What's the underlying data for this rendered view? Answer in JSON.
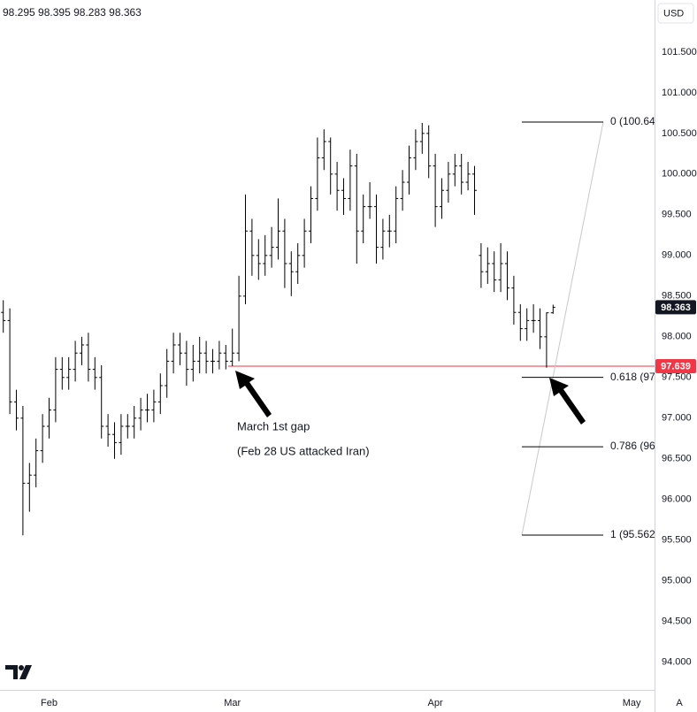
{
  "chart_data": {
    "type": "ohlc",
    "color": "#000000",
    "grid": false,
    "currency": "USD",
    "scale_mode": "A",
    "categories": [
      null,
      null,
      null,
      null,
      null,
      null,
      null,
      "Feb",
      null,
      null,
      null,
      null,
      null,
      null,
      null,
      null,
      null,
      null,
      null,
      null,
      null,
      null,
      null,
      null,
      null,
      null,
      null,
      null,
      null,
      null,
      null,
      null,
      null,
      null,
      null,
      "Mar",
      null,
      null,
      null,
      null,
      null,
      null,
      null,
      null,
      null,
      null,
      null,
      null,
      null,
      null,
      null,
      null,
      null,
      null,
      null,
      null,
      null,
      null,
      null,
      null,
      null,
      null,
      null,
      null,
      null,
      null,
      "Apr",
      null,
      null,
      null,
      null,
      null,
      null,
      null,
      null,
      null,
      null,
      null,
      null,
      null,
      null,
      null,
      null,
      null,
      null,
      null,
      null,
      null,
      null,
      null,
      null,
      null,
      null,
      null,
      null,
      null,
      "May",
      null,
      null,
      null
    ],
    "open": [
      98.3,
      98.2,
      97.2,
      97.0,
      96.2,
      96.3,
      96.6,
      96.9,
      97.1,
      97.6,
      97.5,
      97.6,
      97.8,
      97.9,
      97.6,
      97.5,
      96.9,
      96.8,
      96.7,
      96.9,
      96.9,
      97.0,
      97.1,
      97.1,
      97.2,
      97.4,
      97.7,
      97.9,
      97.8,
      97.6,
      97.7,
      97.8,
      97.7,
      97.7,
      97.8,
      97.7,
      97.8,
      98.5,
      99.3,
      99.0,
      98.9,
      99.0,
      99.1,
      99.3,
      98.9,
      98.8,
      99.0,
      99.3,
      99.7,
      100.2,
      100.4,
      100.0,
      99.8,
      99.7,
      100.1,
      99.3,
      99.6,
      99.6,
      99.1,
      99.3,
      99.3,
      99.7,
      99.9,
      100.2,
      100.4,
      100.5,
      100.1,
      99.6,
      99.8,
      100.0,
      100.1,
      99.9,
      100.0,
      99.0,
      98.8,
      98.9,
      98.7,
      98.9,
      98.6,
      98.3,
      98.1,
      98.2,
      98.2,
      98.0,
      98.295,
      null,
      null,
      null,
      null,
      null,
      null,
      null,
      null,
      null,
      null,
      null,
      null,
      null,
      null,
      null
    ],
    "high": [
      98.45,
      98.35,
      97.35,
      97.15,
      96.45,
      96.75,
      97.05,
      97.25,
      97.75,
      97.75,
      97.75,
      97.95,
      98.0,
      98.05,
      97.75,
      97.65,
      97.05,
      96.95,
      97.05,
      97.05,
      97.15,
      97.25,
      97.3,
      97.35,
      97.55,
      97.85,
      98.05,
      98.05,
      97.95,
      97.9,
      98.0,
      97.95,
      97.85,
      97.95,
      97.9,
      98.1,
      98.75,
      99.75,
      99.45,
      99.2,
      99.25,
      99.35,
      99.7,
      99.45,
      99.05,
      99.15,
      99.45,
      99.85,
      100.45,
      100.55,
      100.45,
      100.15,
      99.95,
      100.3,
      100.25,
      99.75,
      99.9,
      99.75,
      99.45,
      99.5,
      99.85,
      100.05,
      100.35,
      100.55,
      100.63,
      100.6,
      100.25,
      99.95,
      100.15,
      100.25,
      100.25,
      100.15,
      100.1,
      99.15,
      99.1,
      99.05,
      99.15,
      99.05,
      98.75,
      98.4,
      98.35,
      98.4,
      98.35,
      98.3,
      98.395,
      null,
      null,
      null,
      null,
      null,
      null,
      null,
      null,
      null,
      null,
      null,
      null,
      null,
      null,
      null
    ],
    "low": [
      98.05,
      97.05,
      96.85,
      95.56,
      95.85,
      96.15,
      96.45,
      96.75,
      96.95,
      97.35,
      97.35,
      97.45,
      97.65,
      97.45,
      97.35,
      96.75,
      96.65,
      96.5,
      96.55,
      96.75,
      96.75,
      96.85,
      96.95,
      96.95,
      97.05,
      97.25,
      97.55,
      97.65,
      97.4,
      97.45,
      97.55,
      97.55,
      97.55,
      97.6,
      97.6,
      97.64,
      97.7,
      98.4,
      98.75,
      98.7,
      98.75,
      98.85,
      98.95,
      98.6,
      98.5,
      98.65,
      98.85,
      99.15,
      99.55,
      100.05,
      99.75,
      99.55,
      99.5,
      99.55,
      98.9,
      99.15,
      99.45,
      98.9,
      98.95,
      99.1,
      99.15,
      99.55,
      99.75,
      100.05,
      100.25,
      99.95,
      99.35,
      99.45,
      99.65,
      99.85,
      99.75,
      99.8,
      99.5,
      98.6,
      98.65,
      98.55,
      98.55,
      98.45,
      98.15,
      97.95,
      97.95,
      98.05,
      97.85,
      97.62,
      98.283,
      null,
      null,
      null,
      null,
      null,
      null,
      null,
      null,
      null,
      null,
      null,
      null,
      null,
      null,
      null
    ],
    "close": [
      98.2,
      97.2,
      97.0,
      96.2,
      96.3,
      96.6,
      96.9,
      97.1,
      97.6,
      97.5,
      97.6,
      97.8,
      97.9,
      97.6,
      97.5,
      96.9,
      96.8,
      96.7,
      96.9,
      96.9,
      97.0,
      97.1,
      97.1,
      97.2,
      97.4,
      97.7,
      97.9,
      97.8,
      97.6,
      97.7,
      97.8,
      97.7,
      97.7,
      97.8,
      97.7,
      97.8,
      98.5,
      99.3,
      99.0,
      98.9,
      99.0,
      99.1,
      99.3,
      98.9,
      98.8,
      99.0,
      99.3,
      99.7,
      100.2,
      100.4,
      100.0,
      99.8,
      99.7,
      100.1,
      99.3,
      99.6,
      99.6,
      99.1,
      99.3,
      99.3,
      99.7,
      99.9,
      100.2,
      100.4,
      100.5,
      100.1,
      99.6,
      99.8,
      100.0,
      100.1,
      99.9,
      100.0,
      99.8,
      98.8,
      98.9,
      98.7,
      98.9,
      98.6,
      98.3,
      98.1,
      98.2,
      98.2,
      98.0,
      98.295,
      98.363,
      null,
      null,
      null,
      null,
      null,
      null,
      null,
      null,
      null,
      null,
      null,
      null,
      null,
      null,
      null
    ],
    "ylim": [
      93.66,
      102.14
    ],
    "yticks": [
      {
        "value": 94,
        "label": "94.000"
      },
      {
        "value": 94.5,
        "label": "94.500"
      },
      {
        "value": 95,
        "label": "95.000"
      },
      {
        "value": 95.5,
        "label": "95.500"
      },
      {
        "value": 96,
        "label": "96.000"
      },
      {
        "value": 96.5,
        "label": "96.500"
      },
      {
        "value": 97,
        "label": "97.000"
      },
      {
        "value": 97.5,
        "label": "97.500"
      },
      {
        "value": 98,
        "label": "98.000"
      },
      {
        "value": 98.5,
        "label": "98.500"
      },
      {
        "value": 99,
        "label": "99.000"
      },
      {
        "value": 99.5,
        "label": "99.500"
      },
      {
        "value": 100,
        "label": "100.000"
      },
      {
        "value": 100.5,
        "label": "100.500"
      },
      {
        "value": 101,
        "label": "101.000"
      },
      {
        "value": 101.5,
        "label": "101.500"
      }
    ],
    "horizontal_line": {
      "value": 97.639,
      "color": "#f23645"
    },
    "fibonacci": {
      "color": "#000000",
      "trend_color": "#c8c8c8",
      "levels": [
        {
          "label": "0 (100.64",
          "price": 100.64
        },
        {
          "label": "0.618 (97",
          "price": 97.502
        },
        {
          "label": "0.786 (96",
          "price": 96.649
        },
        {
          "label": "1 (95.562",
          "price": 95.562
        }
      ]
    },
    "annotations": [
      "March 1st gap",
      "(Feb 28 US attacked Iran)"
    ]
  }
}
